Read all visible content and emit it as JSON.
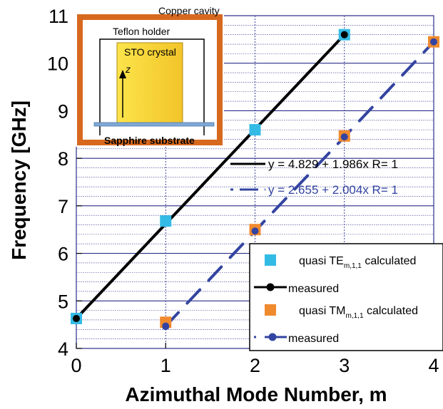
{
  "chart_data": {
    "type": "line",
    "xlabel": "Azimuthal Mode Number, m",
    "ylabel": "Frequency [GHz]",
    "xlim": [
      0,
      4
    ],
    "ylim": [
      4,
      11
    ],
    "x_ticks": [
      "0",
      "1",
      "2",
      "3",
      "4"
    ],
    "y_ticks": [
      "4",
      "5",
      "6",
      "7",
      "8",
      "9",
      "10",
      "11"
    ],
    "grid": true,
    "legend_position": "bottom-right",
    "series": [
      {
        "name": "quasi TE calculated",
        "name_main": "quasi TE",
        "name_sub": "m,1,1",
        "name_tail": " calculated",
        "style": "square-markers",
        "color": "#33bbe6",
        "x": [
          0,
          1,
          2,
          3
        ],
        "y": [
          4.63,
          6.68,
          8.6,
          10.6
        ]
      },
      {
        "name": "measured",
        "style": "solid-line-circles",
        "color": "#000000",
        "x": [
          0,
          3
        ],
        "y": [
          4.63,
          10.6
        ]
      },
      {
        "name": "quasi TM calculated",
        "name_main": "quasi TM",
        "name_sub": "m,1,1",
        "name_tail": " calculated",
        "style": "square-markers",
        "color": "#f08a2e",
        "x": [
          1,
          2,
          3,
          4
        ],
        "y": [
          4.55,
          6.5,
          8.47,
          10.45
        ]
      },
      {
        "name": "measured",
        "style": "dashed-line-circles",
        "color": "#3344a0",
        "x": [
          1,
          2,
          3,
          4
        ],
        "y": [
          4.47,
          6.47,
          8.45,
          10.45
        ]
      }
    ],
    "fits": [
      {
        "label": "y = 4.829 + 1.986x   R= 1",
        "color": "#000000",
        "style": "solid"
      },
      {
        "label": "y = 2.655 + 2.004x   R= 1",
        "color": "#3344a0",
        "style": "dashed"
      }
    ],
    "inset": {
      "labels": {
        "cavity": "Copper cavity",
        "holder": "Teflon holder",
        "crystal": "STO crystal",
        "axis": "z",
        "substrate": "Sapphire substrate"
      }
    }
  }
}
